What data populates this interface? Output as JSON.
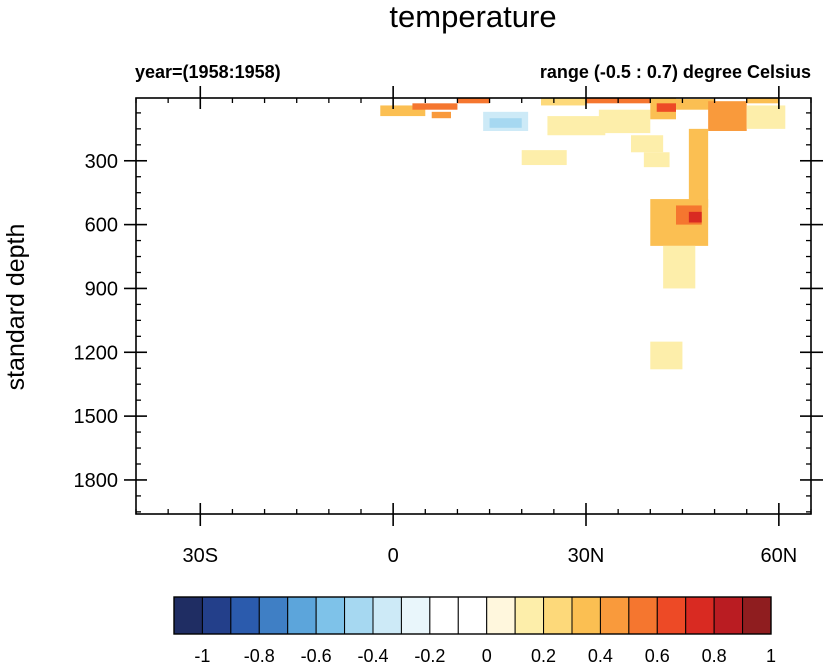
{
  "chart_data": {
    "type": "heatmap",
    "title": "temperature",
    "left_string": "year=(1958:1958)",
    "right_string": "range (-0.5 : 0.7) degree Celsius",
    "xlabel": "",
    "ylabel": "standard depth",
    "xlim": [
      -40,
      65
    ],
    "ylim": [
      1960,
      5
    ],
    "y_reversed": true,
    "x_ticks": [
      {
        "value": -30,
        "label": "30S"
      },
      {
        "value": 0,
        "label": "0"
      },
      {
        "value": 30,
        "label": "30N"
      },
      {
        "value": 60,
        "label": "60N"
      }
    ],
    "x_minor_ticks": [
      -40,
      -35,
      -25,
      -20,
      -15,
      -10,
      -5,
      5,
      10,
      15,
      20,
      25,
      35,
      40,
      45,
      50,
      55,
      65
    ],
    "y_ticks": [
      {
        "value": 300,
        "label": "300"
      },
      {
        "value": 600,
        "label": "600"
      },
      {
        "value": 900,
        "label": "900"
      },
      {
        "value": 1200,
        "label": "1200"
      },
      {
        "value": 1500,
        "label": "1500"
      },
      {
        "value": 1800,
        "label": "1800"
      }
    ],
    "y_minor_ticks": [
      75,
      150,
      225,
      375,
      450,
      525,
      675,
      750,
      825,
      975,
      1050,
      1125,
      1275,
      1350,
      1425,
      1575,
      1650,
      1725,
      1875,
      1950
    ],
    "colorbar": {
      "levels": [
        "-1",
        "-0.8",
        "-0.6",
        "-0.4",
        "-0.2",
        "0",
        "0.2",
        "0.4",
        "0.6",
        "0.8",
        "1"
      ],
      "colors": [
        "#1f2d63",
        "#233f8a",
        "#2b5bad",
        "#3f7fc5",
        "#5ca5db",
        "#7ec2e9",
        "#a6d8f1",
        "#cdeaf7",
        "#e9f6fb",
        "#ffffff",
        "#ffffff",
        "#fff7dd",
        "#fdeeaa",
        "#fdd97a",
        "#fbbf52",
        "#f99a3c",
        "#f5762f",
        "#ed4a26",
        "#d92a22",
        "#ba1c22",
        "#8f1d1f"
      ]
    },
    "regions": [
      {
        "x": [
          -37,
          -20
        ],
        "y": [
          0,
          105
        ],
        "value": -0.1
      },
      {
        "x": [
          -20,
          -10
        ],
        "y": [
          60,
          130
        ],
        "value": -0.05
      },
      {
        "x": [
          -8,
          0
        ],
        "y": [
          70,
          140
        ],
        "value": -0.1
      },
      {
        "x": [
          -2,
          5
        ],
        "y": [
          40,
          90
        ],
        "value": 0.35
      },
      {
        "x": [
          3,
          10
        ],
        "y": [
          30,
          60
        ],
        "value": 0.5
      },
      {
        "x": [
          10,
          15
        ],
        "y": [
          0,
          25
        ],
        "value": 0.55
      },
      {
        "x": [
          6,
          9
        ],
        "y": [
          70,
          100
        ],
        "value": 0.45
      },
      {
        "x": [
          14,
          21
        ],
        "y": [
          70,
          160
        ],
        "value": -0.35
      },
      {
        "x": [
          15,
          20
        ],
        "y": [
          100,
          145
        ],
        "value": -0.45
      },
      {
        "x": [
          23,
          30
        ],
        "y": [
          0,
          35
        ],
        "value": 0.25
      },
      {
        "x": [
          24,
          33
        ],
        "y": [
          90,
          180
        ],
        "value": 0.15
      },
      {
        "x": [
          30,
          40
        ],
        "y": [
          0,
          25
        ],
        "value": 0.5
      },
      {
        "x": [
          32,
          40
        ],
        "y": [
          60,
          170
        ],
        "value": 0.2
      },
      {
        "x": [
          40,
          44
        ],
        "y": [
          0,
          100
        ],
        "value": 0.4
      },
      {
        "x": [
          41,
          44
        ],
        "y": [
          30,
          70
        ],
        "value": 0.65
      },
      {
        "x": [
          44,
          50
        ],
        "y": [
          10,
          60
        ],
        "value": 0.35
      },
      {
        "x": [
          49,
          55
        ],
        "y": [
          20,
          160
        ],
        "value": 0.45
      },
      {
        "x": [
          55,
          60
        ],
        "y": [
          0,
          25
        ],
        "value": 0.3
      },
      {
        "x": [
          55,
          61
        ],
        "y": [
          40,
          150
        ],
        "value": 0.15
      },
      {
        "x": [
          46,
          49
        ],
        "y": [
          150,
          520
        ],
        "value": 0.35
      },
      {
        "x": [
          40,
          49
        ],
        "y": [
          480,
          700
        ],
        "value": 0.35
      },
      {
        "x": [
          44,
          48
        ],
        "y": [
          510,
          600
        ],
        "value": 0.55
      },
      {
        "x": [
          46,
          48
        ],
        "y": [
          540,
          590
        ],
        "value": 0.7
      },
      {
        "x": [
          39,
          43
        ],
        "y": [
          260,
          330
        ],
        "value": 0.15
      },
      {
        "x": [
          42,
          47
        ],
        "y": [
          700,
          900
        ],
        "value": 0.2
      },
      {
        "x": [
          -30,
          -15
        ],
        "y": [
          300,
          450
        ],
        "value": -0.2
      },
      {
        "x": [
          -40,
          -25
        ],
        "y": [
          600,
          880
        ],
        "value": -0.1
      },
      {
        "x": [
          -10,
          -5
        ],
        "y": [
          480,
          560
        ],
        "value": -0.1
      },
      {
        "x": [
          25,
          35
        ],
        "y": [
          700,
          950
        ],
        "value": -0.15
      },
      {
        "x": [
          20,
          27
        ],
        "y": [
          250,
          320
        ],
        "value": 0.1
      },
      {
        "x": [
          37,
          42
        ],
        "y": [
          180,
          260
        ],
        "value": 0.1
      },
      {
        "x": [
          55,
          65
        ],
        "y": [
          300,
          480
        ],
        "value": -0.15
      },
      {
        "x": [
          58,
          65
        ],
        "y": [
          800,
          1200
        ],
        "value": -0.2
      },
      {
        "x": [
          58,
          64
        ],
        "y": [
          1200,
          1900
        ],
        "value": -0.1
      },
      {
        "x": [
          9,
          23
        ],
        "y": [
          1530,
          1960
        ],
        "value": -0.1
      },
      {
        "x": [
          40,
          45
        ],
        "y": [
          1150,
          1280
        ],
        "value": 0.1
      },
      {
        "x": [
          -5,
          -2
        ],
        "y": [
          1450,
          1550
        ],
        "value": -0.1
      },
      {
        "x": [
          -12,
          -8
        ],
        "y": [
          1450,
          1550
        ],
        "value": -0.05
      }
    ]
  }
}
